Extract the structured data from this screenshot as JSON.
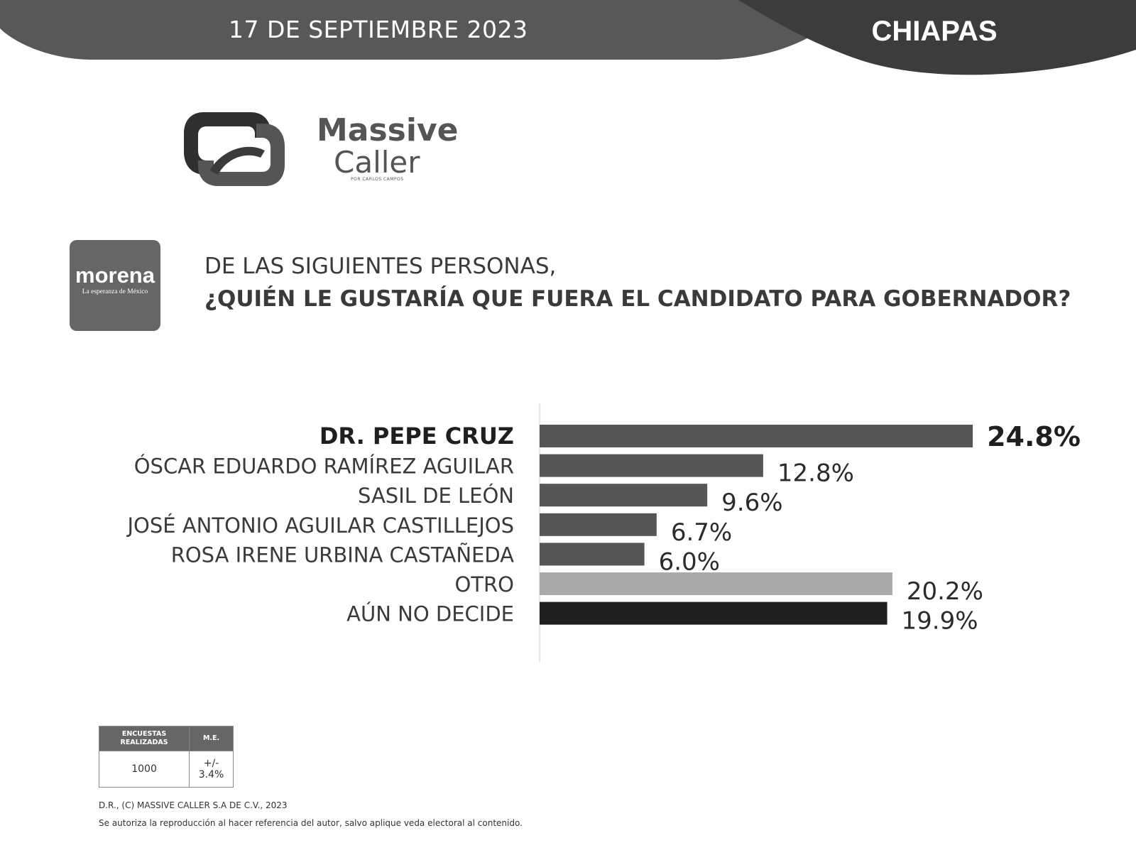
{
  "header": {
    "date": "17 DE SEPTIEMBRE 2023",
    "state": "CHIAPAS"
  },
  "brand": {
    "name_line1": "Massive",
    "name_line2": "Caller",
    "tagline": "POR CARLOS CAMPOS",
    "logo_icon": "interlocked-speech-bubbles-icon"
  },
  "party": {
    "name": "morena",
    "slogan": "La esperanza de México",
    "color": "#666666"
  },
  "question": {
    "line1": "DE LAS SIGUIENTES PERSONAS,",
    "line2": "¿QUIÉN LE GUSTARÍA QUE FUERA EL CANDIDATO PARA GOBERNADOR?"
  },
  "chart_data": {
    "type": "bar",
    "orientation": "horizontal",
    "categories": [
      "DR. PEPE CRUZ",
      "ÓSCAR EDUARDO RAMÍREZ AGUILAR",
      "SASIL DE LEÓN",
      "JOSÉ ANTONIO AGUILAR CASTILLEJOS",
      "ROSA IRENE URBINA CASTAÑEDA",
      "OTRO",
      "AÚN NO DECIDE"
    ],
    "values": [
      24.8,
      12.8,
      9.6,
      6.7,
      6.0,
      20.2,
      19.9
    ],
    "value_labels": [
      "24.8%",
      "12.8%",
      "9.6%",
      "6.7%",
      "6.0%",
      "20.2%",
      "19.9%"
    ],
    "bar_colors": [
      "#555555",
      "#555555",
      "#555555",
      "#555555",
      "#555555",
      "#aaaaaa",
      "#1e1e1e"
    ],
    "highlight_index": 0,
    "xlim": [
      0,
      25
    ],
    "grid": false,
    "legend": "none"
  },
  "survey": {
    "col1_header": "ENCUESTAS REALIZADAS",
    "col2_header": "M.E.",
    "col1_value": "1000",
    "col2_value": "+/- 3.4%"
  },
  "footer": {
    "copyright": "D.R., (C) MASSIVE CALLER S.A DE C.V., 2023",
    "note": "Se autoriza la reproducción al hacer referencia del autor, salvo aplique veda electoral al contenido."
  }
}
